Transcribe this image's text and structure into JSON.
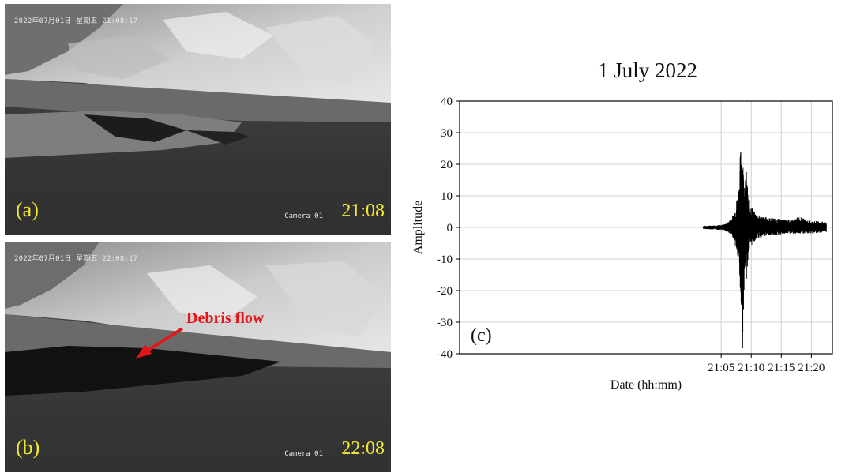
{
  "photos": [
    {
      "osd_date": "2022年07月01日 星期五 21:08:17",
      "camera": "Camera 01",
      "panel_label": "(a)",
      "time": "21:08"
    },
    {
      "osd_date": "2022年07月01日 星期五 22:08:17",
      "camera": "Camera 01",
      "panel_label": "(b)",
      "time": "22:08",
      "annotation": "Debris flow"
    }
  ],
  "colors": {
    "label_yellow": "#f2ea2e",
    "annotation_red": "#e3151b"
  },
  "chart_data": {
    "type": "line",
    "title": "1 July 2022",
    "panel_label": "(c)",
    "xlabel": "Date (hh:mm)",
    "ylabel": "Amplitude",
    "xlim_minutes": [
      21.5,
      83.5
    ],
    "ylim": [
      -40,
      40
    ],
    "xticks": [
      {
        "value": 65,
        "label": "21:05"
      },
      {
        "value": 70,
        "label": "21:10"
      },
      {
        "value": 75,
        "label": "21:15"
      },
      {
        "value": 80,
        "label": "21:20"
      }
    ],
    "yticks": [
      -40,
      -30,
      -20,
      -10,
      0,
      10,
      20,
      30,
      40
    ],
    "grid": true,
    "series": [
      {
        "envelope": [
          {
            "t": 62.0,
            "max": 0.5,
            "min": -0.5
          },
          {
            "t": 63.0,
            "max": 0.6,
            "min": -0.6
          },
          {
            "t": 64.0,
            "max": 0.7,
            "min": -0.7
          },
          {
            "t": 65.0,
            "max": 0.8,
            "min": -0.8
          },
          {
            "t": 65.5,
            "max": 1.0,
            "min": -1.0
          },
          {
            "t": 66.0,
            "max": 1.5,
            "min": -1.5
          },
          {
            "t": 66.5,
            "max": 2.5,
            "min": -2.0
          },
          {
            "t": 67.0,
            "max": 4.0,
            "min": -3.5
          },
          {
            "t": 67.5,
            "max": 8.0,
            "min": -7.0
          },
          {
            "t": 68.0,
            "max": 15.0,
            "min": -13.0
          },
          {
            "t": 68.2,
            "max": 25.0,
            "min": -24.0
          },
          {
            "t": 68.4,
            "max": 28.0,
            "min": -30.0
          },
          {
            "t": 68.6,
            "max": 22.0,
            "min": -41.0
          },
          {
            "t": 68.8,
            "max": 18.0,
            "min": -20.0
          },
          {
            "t": 69.0,
            "max": 15.0,
            "min": -15.0
          },
          {
            "t": 69.2,
            "max": 18.0,
            "min": -18.0
          },
          {
            "t": 69.5,
            "max": 10.0,
            "min": -9.0
          },
          {
            "t": 70.0,
            "max": 7.0,
            "min": -6.0
          },
          {
            "t": 70.5,
            "max": 5.0,
            "min": -4.5
          },
          {
            "t": 71.0,
            "max": 4.0,
            "min": -3.5
          },
          {
            "t": 72.0,
            "max": 3.5,
            "min": -3.0
          },
          {
            "t": 73.0,
            "max": 3.0,
            "min": -2.5
          },
          {
            "t": 74.0,
            "max": 3.0,
            "min": -2.5
          },
          {
            "t": 75.0,
            "max": 2.5,
            "min": -2.2
          },
          {
            "t": 76.0,
            "max": 2.5,
            "min": -2.0
          },
          {
            "t": 77.0,
            "max": 2.5,
            "min": -2.0
          },
          {
            "t": 78.0,
            "max": 3.5,
            "min": -2.0
          },
          {
            "t": 79.0,
            "max": 2.5,
            "min": -2.0
          },
          {
            "t": 80.0,
            "max": 2.0,
            "min": -2.0
          },
          {
            "t": 81.0,
            "max": 2.0,
            "min": -1.8
          },
          {
            "t": 82.0,
            "max": 1.8,
            "min": -1.6
          },
          {
            "t": 82.5,
            "max": 1.5,
            "min": -1.5
          }
        ]
      }
    ]
  }
}
